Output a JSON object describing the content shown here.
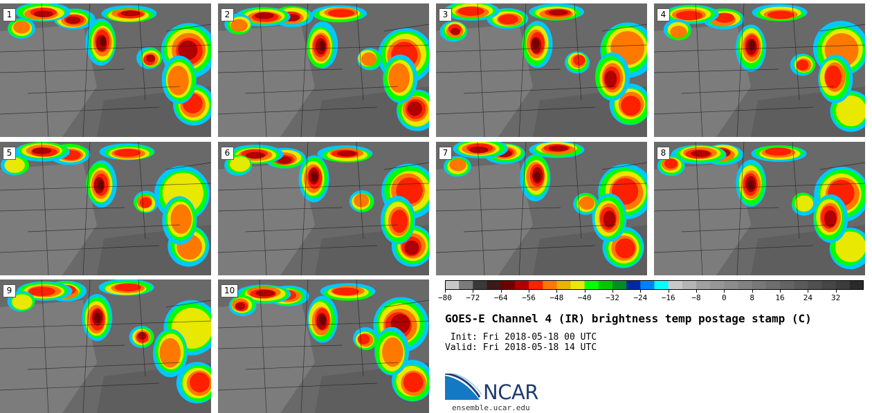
{
  "panels": [
    {
      "number": "1"
    },
    {
      "number": "2"
    },
    {
      "number": "3"
    },
    {
      "number": "4"
    },
    {
      "number": "5"
    },
    {
      "number": "6"
    },
    {
      "number": "7"
    },
    {
      "number": "8"
    },
    {
      "number": "9"
    },
    {
      "number": "10"
    }
  ],
  "chart_data": {
    "type": "heatmap",
    "title": "GOES-E Channel 4 (IR) brightness temp postage stamp (C)",
    "colorbar": {
      "min": -80,
      "max": 40,
      "step": 4,
      "tick_values": [
        -80,
        -72,
        -64,
        -56,
        -48,
        -40,
        -32,
        -24,
        -16,
        -8,
        0,
        8,
        16,
        24,
        32
      ],
      "tick_labels": [
        "−80",
        "−72",
        "−64",
        "−56",
        "−48",
        "−40",
        "−32",
        "−24",
        "−16",
        "−8",
        "0",
        "8",
        "16",
        "24",
        "32"
      ],
      "colors": [
        "#c8c8c8",
        "#7a7a7a",
        "#3a3a3a",
        "#3c1a1a",
        "#6e0000",
        "#b00000",
        "#ff2000",
        "#ff7800",
        "#e8b400",
        "#e8e800",
        "#00ff00",
        "#00c800",
        "#008c28",
        "#0028a0",
        "#0080ff",
        "#00ffff",
        "#c8c8c8",
        "#b4b4b4",
        "#a0a0a0",
        "#969696",
        "#8c8c8c",
        "#828282",
        "#787878",
        "#6e6e6e",
        "#646464",
        "#5a5a5a",
        "#505050",
        "#464646",
        "#3c3c3c",
        "#2a2a2a"
      ]
    },
    "ensemble_members": 10
  },
  "info": {
    "init": " Init: Fri 2018-05-18 00 UTC",
    "valid": "Valid: Fri 2018-05-18 14 UTC"
  },
  "logo": {
    "text": "NCAR",
    "url": "ensemble.ucar.edu"
  }
}
